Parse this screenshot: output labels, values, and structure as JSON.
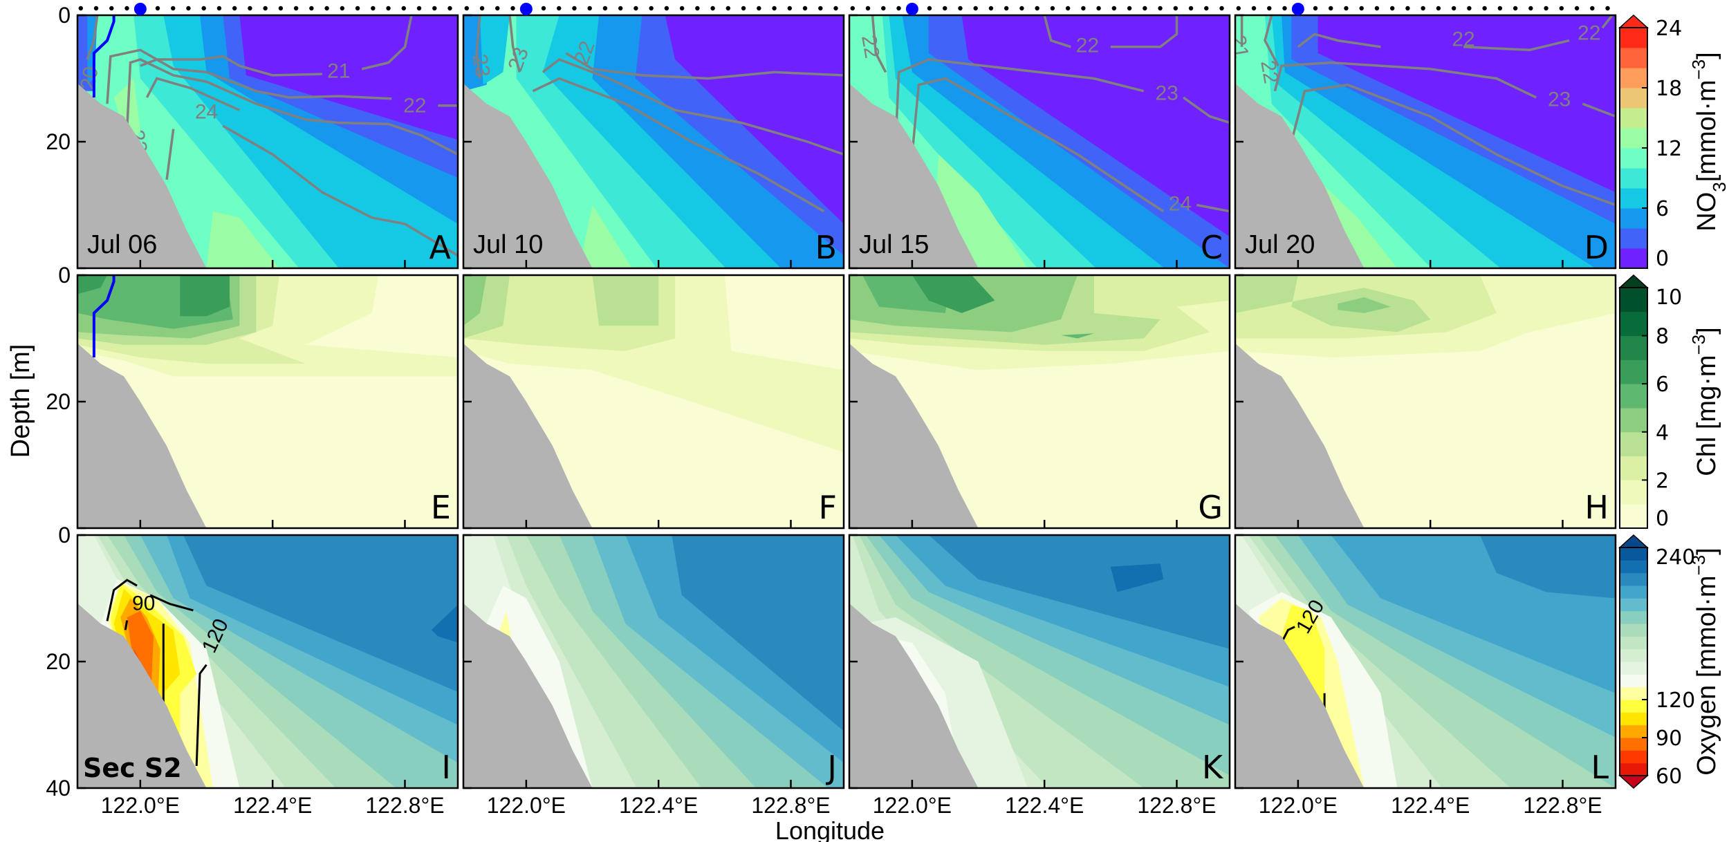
{
  "chart_data": {
    "type": "heatmap",
    "subtype": "filled-contour sections",
    "xlabel": "Longitude",
    "ylabel": "Depth [m]",
    "xlim": [
      121.81,
      122.96
    ],
    "ylim": [
      40,
      0
    ],
    "xticks": [
      122.0,
      122.4,
      122.8
    ],
    "xtick_labels": [
      "122.0°E",
      "122.4°E",
      "122.8°E"
    ],
    "yticks": [
      0,
      20,
      40
    ],
    "ytick_labels": [
      "0",
      "20",
      "40"
    ],
    "section_label": "Sec S2",
    "grid": false,
    "station_marker_lon": 122.0,
    "rows": [
      {
        "variable": "NO3",
        "colorbar": {
          "label_main": "NO",
          "label_sub": "3",
          "label_unit": "[mmol·m",
          "label_sup": "−3",
          "label_end": "]",
          "min": 0,
          "max": 24,
          "ticks": [
            "0",
            "6",
            "12",
            "18",
            "24"
          ],
          "extend": "max",
          "colors": [
            "#6f21ff",
            "#4263f7",
            "#1798ef",
            "#15c9e4",
            "#3de9d6",
            "#6ffec3",
            "#9afca5",
            "#c4ed8d",
            "#ecc674",
            "#ff9e5b",
            "#ff6339",
            "#ff2a18"
          ],
          "over_color": "#ff2a18"
        }
      },
      {
        "variable": "Chl",
        "colorbar": {
          "label_main": "Chl [mg·m",
          "label_sub": "",
          "label_unit": "",
          "label_sup": "−3",
          "label_end": "]",
          "min": 0,
          "max": 10,
          "ticks": [
            "0",
            "2",
            "4",
            "6",
            "8",
            "10"
          ],
          "extend": "max",
          "colors": [
            "#fafcd4",
            "#eef9bb",
            "#dbf0a5",
            "#b8e194",
            "#8ccd80",
            "#5fb86f",
            "#3a9e5a",
            "#22854a",
            "#086c3a",
            "#00502c"
          ],
          "over_color": "#00401f"
        }
      },
      {
        "variable": "Oxygen",
        "colorbar": {
          "label_main": "Oxygen [mmol·m",
          "label_sub": "",
          "label_unit": "",
          "label_sup": "−3",
          "label_end": "]",
          "min": 60,
          "max": 240,
          "ticks": [
            "60",
            "90",
            "120",
            "240"
          ],
          "extend": "both",
          "colors": [
            "#e81808",
            "#ff3a00",
            "#ff7000",
            "#ffa800",
            "#ffe600",
            "#ffff40",
            "#fdffa0",
            "#f5fbf0",
            "#e5f4e0",
            "#d5eed2",
            "#c2e6c2",
            "#a8dcbb",
            "#88cfc0",
            "#62bccc",
            "#42a6cc",
            "#2a8abe",
            "#1270b0",
            "#08589e"
          ],
          "under_color": "#c8001a",
          "over_color": "#08488a"
        }
      }
    ],
    "panels": [
      {
        "letter": "A",
        "date": "Jul 06",
        "variable": "NO3",
        "contour_labels": [
          "20",
          "21",
          "22",
          "23",
          "24"
        ]
      },
      {
        "letter": "B",
        "date": "Jul 10",
        "variable": "NO3",
        "contour_labels": [
          "23",
          "23",
          "22"
        ]
      },
      {
        "letter": "C",
        "date": "Jul 15",
        "variable": "NO3",
        "contour_labels": [
          "22",
          "22",
          "23",
          "24"
        ]
      },
      {
        "letter": "D",
        "date": "Jul 20",
        "variable": "NO3",
        "contour_labels": [
          "21",
          "22",
          "22",
          "22",
          "23"
        ]
      },
      {
        "letter": "E",
        "date": "",
        "variable": "Chl",
        "contour_labels": []
      },
      {
        "letter": "F",
        "date": "",
        "variable": "Chl",
        "contour_labels": []
      },
      {
        "letter": "G",
        "date": "",
        "variable": "Chl",
        "contour_labels": []
      },
      {
        "letter": "H",
        "date": "",
        "variable": "Chl",
        "contour_labels": []
      },
      {
        "letter": "I",
        "date": "",
        "variable": "Oxygen",
        "contour_labels": [
          "90",
          "120"
        ]
      },
      {
        "letter": "J",
        "date": "",
        "variable": "Oxygen",
        "contour_labels": []
      },
      {
        "letter": "K",
        "date": "",
        "variable": "Oxygen",
        "contour_labels": []
      },
      {
        "letter": "L",
        "date": "",
        "variable": "Oxygen",
        "contour_labels": [
          "120"
        ]
      }
    ],
    "colors": {
      "bathymetry": "#b3b3b3",
      "temperature_contour": "#808080",
      "oxygen_contour": "#000000",
      "front_line": "#0000ff",
      "station_marker": "#0000ff"
    }
  }
}
